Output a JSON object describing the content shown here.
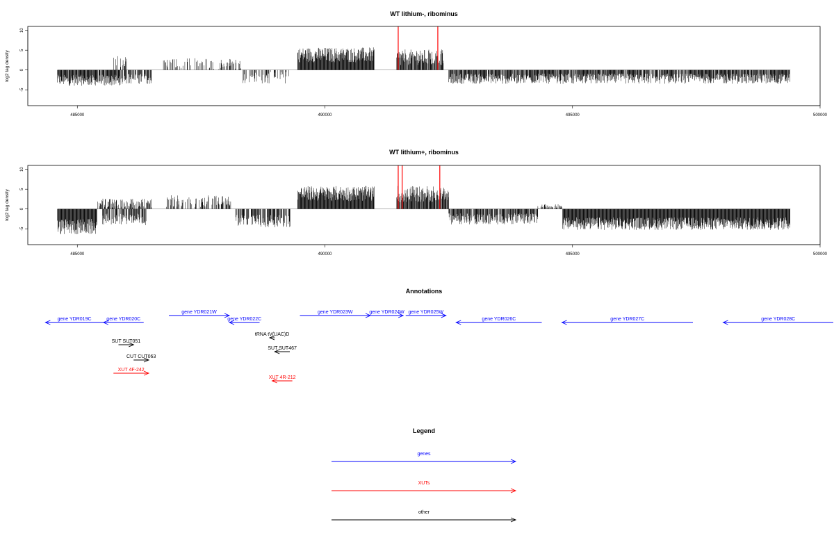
{
  "chart_data": [
    {
      "type": "bar",
      "title": "WT lithium-, ribominus",
      "ylabel": "log2 tag density",
      "xlim": [
        484000,
        500000
      ],
      "ylim": [
        -9,
        11
      ],
      "x_ticks": [
        "485000",
        "490000",
        "495000",
        "500000"
      ],
      "y_ticks": [
        "-5",
        "0",
        "5",
        "10"
      ],
      "baseline": 0,
      "segments": [
        {
          "range": [
            484600,
            485900
          ],
          "mean": -2.6,
          "jitter": 1.4,
          "density": 0.9
        },
        {
          "range": [
            485700,
            486000
          ],
          "mean": 2.2,
          "jitter": 1.5,
          "density": 0.35
        },
        {
          "range": [
            485900,
            486500
          ],
          "mean": -2.2,
          "jitter": 1.3,
          "density": 0.6
        },
        {
          "range": [
            486700,
            488300
          ],
          "mean": 1.6,
          "jitter": 1.4,
          "density": 0.35
        },
        {
          "range": [
            488300,
            489300
          ],
          "mean": -2.0,
          "jitter": 1.5,
          "density": 0.35
        },
        {
          "range": [
            489450,
            491000
          ],
          "mean": 3.8,
          "jitter": 1.9,
          "density": 1.0
        },
        {
          "range": [
            491450,
            492400
          ],
          "mean": 3.2,
          "jitter": 2.0,
          "density": 0.85
        },
        {
          "range": [
            492500,
            499400
          ],
          "mean": -2.2,
          "jitter": 1.3,
          "density": 0.85
        }
      ],
      "highlight_lines": [
        491480,
        492280
      ],
      "highlight_color": "#ff0000",
      "highlight_y": 11
    },
    {
      "type": "bar",
      "title": "WT lithium+, ribominus",
      "ylabel": "log2 tag density",
      "xlim": [
        484000,
        500000
      ],
      "ylim": [
        -9,
        11
      ],
      "x_ticks": [
        "485000",
        "490000",
        "495000",
        "500000"
      ],
      "y_ticks": [
        "-5",
        "0",
        "5",
        "10"
      ],
      "baseline": 0,
      "segments": [
        {
          "range": [
            484600,
            485400
          ],
          "mean": -4.5,
          "jitter": 2.0,
          "density": 1.0
        },
        {
          "range": [
            485400,
            486500
          ],
          "mean": 1.3,
          "jitter": 1.3,
          "density": 0.6
        },
        {
          "range": [
            485500,
            486400
          ],
          "mean": -2.6,
          "jitter": 1.5,
          "density": 0.6
        },
        {
          "range": [
            486800,
            488100
          ],
          "mean": 2.0,
          "jitter": 1.5,
          "density": 0.45
        },
        {
          "range": [
            488200,
            489300
          ],
          "mean": -3.0,
          "jitter": 1.6,
          "density": 0.7
        },
        {
          "range": [
            489450,
            491000
          ],
          "mean": 3.9,
          "jitter": 1.9,
          "density": 1.0
        },
        {
          "range": [
            491450,
            492500
          ],
          "mean": 3.8,
          "jitter": 2.1,
          "density": 0.95
        },
        {
          "range": [
            492500,
            494300
          ],
          "mean": -2.5,
          "jitter": 1.4,
          "density": 0.8
        },
        {
          "range": [
            494300,
            494800
          ],
          "mean": 0.6,
          "jitter": 0.6,
          "density": 0.4
        },
        {
          "range": [
            494800,
            499400
          ],
          "mean": -3.7,
          "jitter": 1.6,
          "density": 1.0
        }
      ],
      "highlight_lines": [
        491480,
        491560,
        492320
      ],
      "highlight_color": "#ff0000",
      "highlight_y": 11
    }
  ],
  "annotations": {
    "title": "Annotations",
    "xlim": [
      484000,
      500000
    ],
    "features": [
      {
        "label": "gene YDR019C",
        "color": "#0000ff",
        "start": 484350,
        "end": 485500,
        "strand": "-",
        "row": 0
      },
      {
        "label": "gene YDR020C",
        "color": "#0000ff",
        "start": 485500,
        "end": 486300,
        "strand": "-",
        "row": 0
      },
      {
        "label": "gene YDR021W",
        "color": "#0000ff",
        "start": 486800,
        "end": 488000,
        "strand": "+",
        "row": -1
      },
      {
        "label": "gene YDR022C",
        "color": "#0000ff",
        "start": 488000,
        "end": 488600,
        "strand": "-",
        "row": 0
      },
      {
        "label": "gene YDR023W",
        "color": "#0000ff",
        "start": 489400,
        "end": 490800,
        "strand": "+",
        "row": -1
      },
      {
        "label": "gene YDR024W",
        "color": "#0000ff",
        "start": 490800,
        "end": 491450,
        "strand": "+",
        "row": -1
      },
      {
        "label": "gene YDR025W",
        "color": "#0000ff",
        "start": 491500,
        "end": 492300,
        "strand": "+",
        "row": -1
      },
      {
        "label": "gene YDR026C",
        "color": "#0000ff",
        "start": 492500,
        "end": 494200,
        "strand": "-",
        "row": 0
      },
      {
        "label": "gene YDR027C",
        "color": "#0000ff",
        "start": 494600,
        "end": 497200,
        "strand": "-",
        "row": 0
      },
      {
        "label": "gene YDR028C",
        "color": "#0000ff",
        "start": 497800,
        "end": 500000,
        "strand": "-",
        "row": 0
      },
      {
        "label": "tRNA tV(UAC)D",
        "color": "#000000",
        "start": 488800,
        "end": 488900,
        "strand": "-",
        "row": 1
      },
      {
        "label": "SUT SUT051",
        "color": "#000000",
        "start": 485800,
        "end": 486100,
        "strand": "+",
        "row": 2
      },
      {
        "label": "SUT SUT467",
        "color": "#000000",
        "start": 488900,
        "end": 489200,
        "strand": "-",
        "row": 3
      },
      {
        "label": "CUT CUT063",
        "color": "#000000",
        "start": 486100,
        "end": 486400,
        "strand": "+",
        "row": 4
      },
      {
        "label": "XUT 4F-242",
        "color": "#ff0000",
        "start": 485700,
        "end": 486400,
        "strand": "+",
        "row": 5
      },
      {
        "label": "XUT 4R-212",
        "color": "#ff0000",
        "start": 488850,
        "end": 489250,
        "strand": "-",
        "row": 6
      }
    ]
  },
  "legend": {
    "title": "Legend",
    "items": [
      {
        "label": "genes",
        "color": "#0000ff"
      },
      {
        "label": "XUTs",
        "color": "#ff0000"
      },
      {
        "label": "other",
        "color": "#000000"
      }
    ]
  }
}
